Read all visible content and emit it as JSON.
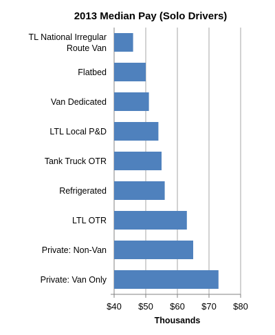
{
  "chart_data": {
    "type": "bar",
    "orientation": "horizontal",
    "title": "2013 Median Pay (Solo Drivers)",
    "xlabel": "Thousands",
    "ylabel": "",
    "categories": [
      "TL National Irregular Route Van",
      "Flatbed",
      "Van Dedicated",
      "LTL Local P&D",
      "Tank Truck OTR",
      "Refrigerated",
      "LTL OTR",
      "Private: Non-Van",
      "Private: Van Only"
    ],
    "values": [
      46,
      50,
      51,
      54,
      55,
      56,
      63,
      65,
      73
    ],
    "xlim": [
      40,
      80
    ],
    "xticks": [
      40,
      50,
      60,
      70,
      80
    ],
    "xtick_labels": [
      "$40",
      "$50",
      "$60",
      "$70",
      "$80"
    ],
    "grid": "vertical",
    "legend": "none",
    "bar_color": "#4f81bd"
  }
}
